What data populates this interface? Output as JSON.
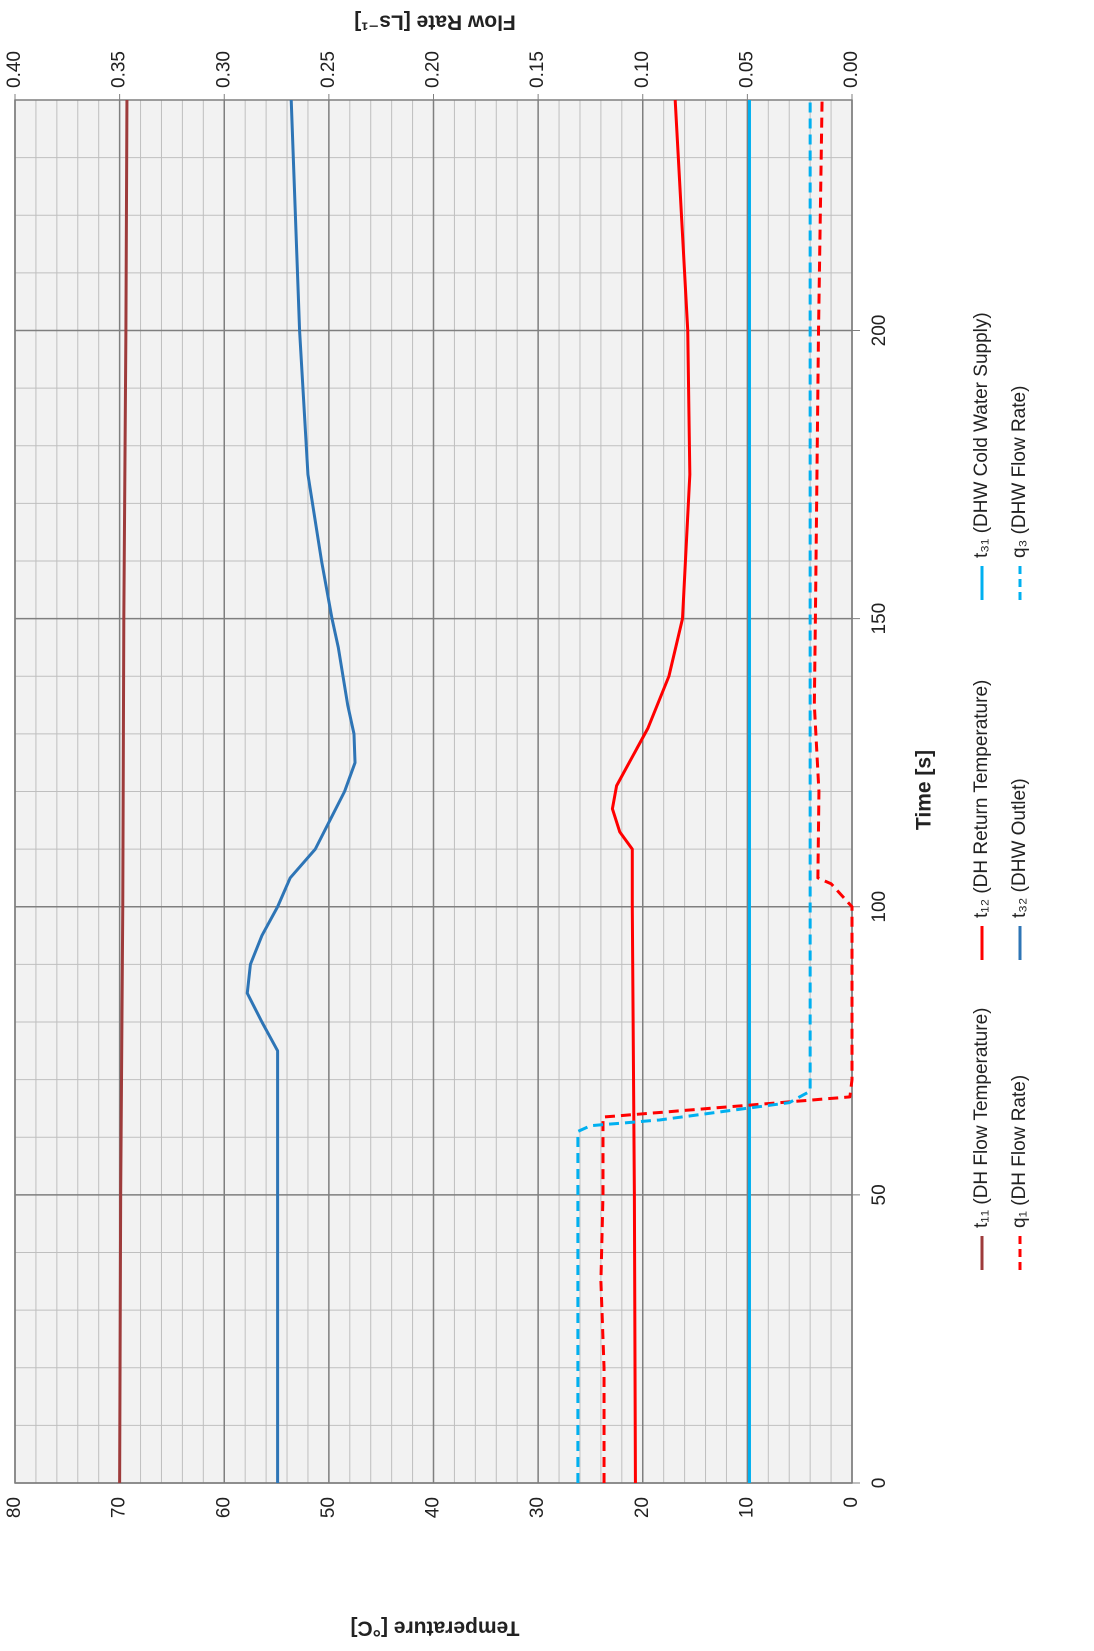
{
  "chart_data": {
    "type": "line",
    "xlabel": "Time [s]",
    "ylabel": "Temperature [°C]",
    "y2label": "Flow Rate [Ls⁻¹]",
    "xlim": [
      0,
      240
    ],
    "xticks": [
      0,
      50,
      100,
      150,
      200
    ],
    "ylim": [
      0,
      80
    ],
    "yticks": [
      0,
      10,
      20,
      30,
      40,
      50,
      60,
      70,
      80
    ],
    "y2lim": [
      0,
      0.4
    ],
    "y2ticks": [
      {
        "value": 0,
        "label": "0.00"
      },
      0.05,
      {
        "value": 0.1,
        "label": "0.10"
      },
      0.15,
      {
        "value": 0.2,
        "label": "0.20"
      },
      0.25,
      {
        "value": 0.3,
        "label": "0.30"
      },
      0.35,
      {
        "value": 0.4,
        "label": "0.40"
      }
    ],
    "grid": true,
    "minor_grid_step": {
      "x": 10,
      "y": 2
    },
    "series": [
      {
        "name": "t₁₁ (DH Flow Temperature)",
        "color": "#9e3b3b",
        "dash": false,
        "x": [
          0,
          50,
          100,
          150,
          200,
          240
        ],
        "values": [
          70,
          69.9,
          69.7,
          69.6,
          69.4,
          69.3
        ]
      },
      {
        "name": "t₁₂ (DH Return Temperature)",
        "color": "#ff0000",
        "dash": false,
        "x": [
          0,
          50,
          100,
          110,
          113,
          117,
          121,
          126,
          131,
          140,
          150,
          175,
          200,
          240
        ],
        "values": [
          20.7,
          20.8,
          21,
          21,
          22.2,
          22.9,
          22.5,
          21,
          19.5,
          17.5,
          16.2,
          15.5,
          15.7,
          16.9
        ]
      },
      {
        "name": "t₃₁ (DHW Cold Water Supply)",
        "color": "#00b0f0",
        "dash": false,
        "x": [
          0,
          100,
          240
        ],
        "values": [
          9.8,
          9.8,
          9.8
        ]
      },
      {
        "name": "q₁ (DH Flow Rate)",
        "color": "#ff0000",
        "dash": true,
        "axis": "y2",
        "x": [
          0,
          20,
          35,
          50,
          63.5,
          67,
          70,
          100,
          104,
          105,
          120,
          135,
          150,
          200,
          240
        ],
        "values": [
          0.1185,
          0.1185,
          0.12,
          0.119,
          0.119,
          0.001,
          0,
          0,
          0.01,
          0.0163,
          0.0158,
          0.018,
          0.0175,
          0.016,
          0.0143
        ]
      },
      {
        "name": "t₃₂ (DHW Outlet)",
        "color": "#2e75b6",
        "dash": false,
        "x": [
          0,
          50,
          75,
          80,
          85,
          90,
          95,
          100,
          105,
          110,
          115,
          120,
          125,
          130,
          135,
          145,
          150,
          160,
          175,
          200,
          225,
          240
        ],
        "values": [
          54.9,
          54.9,
          54.9,
          56.4,
          57.8,
          57.5,
          56.4,
          54.9,
          53.7,
          51.3,
          49.9,
          48.5,
          47.5,
          47.6,
          48.2,
          49.1,
          49.7,
          50.7,
          52,
          52.8,
          53.3,
          53.6
        ]
      },
      {
        "name": "q₃ (DHW Flow Rate)",
        "color": "#00b0f0",
        "dash": true,
        "axis": "y2",
        "x": [
          0,
          30,
          61,
          62,
          63,
          66,
          68,
          100,
          240
        ],
        "values": [
          0.131,
          0.131,
          0.131,
          0.125,
          0.092,
          0.03,
          0.02,
          0.02,
          0.02
        ]
      }
    ]
  }
}
